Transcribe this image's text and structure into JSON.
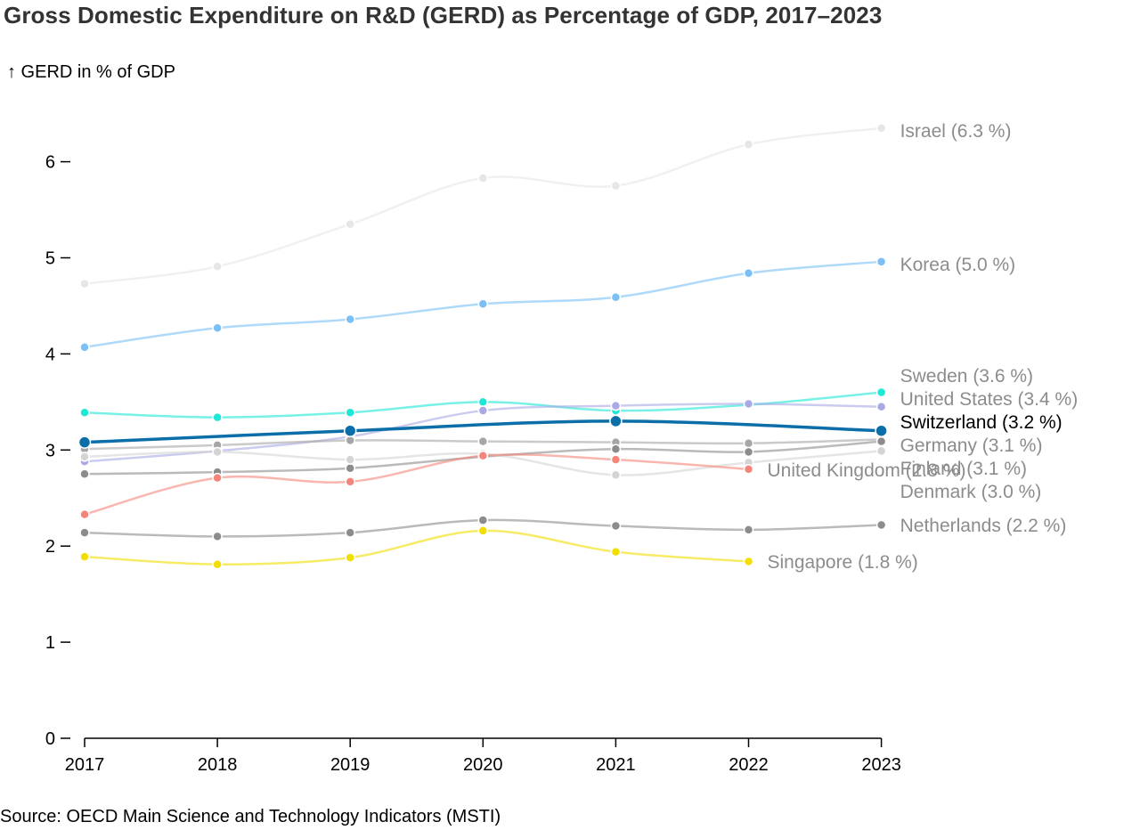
{
  "title": "Gross Domestic Expenditure on R&D (GERD) as Percentage of GDP, 2017–2023",
  "source": "Source: OECD Main Science and Technology Indicators (MSTI)",
  "chart_data": {
    "type": "line",
    "title": "Gross Domestic Expenditure on R&D (GERD) as Percentage of GDP, 2017–2023",
    "ylabel": "↑ GERD in % of GDP",
    "xlabel": "",
    "x": [
      2017,
      2018,
      2019,
      2020,
      2021,
      2022,
      2023
    ],
    "xticks": [
      "2017",
      "2018",
      "2019",
      "2020",
      "2021",
      "2022",
      "2023"
    ],
    "yticks": [
      "0",
      "1",
      "2",
      "3",
      "4",
      "5",
      "6"
    ],
    "ylim": [
      0,
      6.6
    ],
    "grid": false,
    "legend": "end-of-line labels",
    "highlight": "Switzerland",
    "series": [
      {
        "name": "Israel",
        "label": "Israel (6.3 %)",
        "color": "#e6e6e6",
        "label_color": "#8c8c8c",
        "values": [
          4.73,
          4.91,
          5.35,
          5.83,
          5.75,
          6.18,
          6.35
        ]
      },
      {
        "name": "Korea",
        "label": "Korea (5.0 %)",
        "color": "#7abff5",
        "label_color": "#8c8c8c",
        "values": [
          4.07,
          4.27,
          4.36,
          4.52,
          4.59,
          4.84,
          4.96
        ]
      },
      {
        "name": "Sweden",
        "label": "Sweden (3.6 %)",
        "color": "#1de8d6",
        "label_color": "#8c8c8c",
        "values": [
          3.39,
          3.34,
          3.39,
          3.5,
          3.41,
          3.47,
          3.6
        ]
      },
      {
        "name": "United States",
        "label": "United States (3.4 %)",
        "color": "#a9a9e6",
        "label_color": "#8c8c8c",
        "values": [
          2.88,
          2.99,
          3.14,
          3.41,
          3.46,
          3.48,
          3.45
        ]
      },
      {
        "name": "Switzerland",
        "label": "Switzerland (3.2 %)",
        "color": "#0b6ea8",
        "label_color": "#000000",
        "values": [
          3.08,
          null,
          3.2,
          null,
          3.3,
          null,
          3.2
        ]
      },
      {
        "name": "Germany",
        "label": "Germany (3.1 %)",
        "color": "#a6a6a6",
        "label_color": "#8c8c8c",
        "values": [
          3.01,
          3.05,
          3.1,
          3.09,
          3.08,
          3.07,
          3.11
        ]
      },
      {
        "name": "Finland",
        "label": "Finland (3.1 %)",
        "color": "#8c8c8c",
        "label_color": "#8c8c8c",
        "values": [
          2.75,
          2.77,
          2.81,
          2.93,
          3.01,
          2.98,
          3.09
        ]
      },
      {
        "name": "Denmark",
        "label": "Denmark (3.0 %)",
        "color": "#d4d4d4",
        "label_color": "#8c8c8c",
        "values": [
          2.93,
          2.98,
          2.9,
          2.96,
          2.74,
          2.87,
          2.99
        ]
      },
      {
        "name": "United Kingdom",
        "label": "United Kingdom (2.8 %)",
        "color": "#f5857a",
        "label_color": "#8c8c8c",
        "values": [
          2.33,
          2.71,
          2.67,
          2.94,
          2.9,
          2.8,
          null
        ]
      },
      {
        "name": "Netherlands",
        "label": "Netherlands (2.2 %)",
        "color": "#8c8c8c",
        "label_color": "#8c8c8c",
        "values": [
          2.14,
          2.1,
          2.14,
          2.27,
          2.21,
          2.17,
          2.22
        ]
      },
      {
        "name": "Singapore",
        "label": "Singapore (1.8 %)",
        "color": "#f2de00",
        "label_color": "#8c8c8c",
        "values": [
          1.89,
          1.81,
          1.88,
          2.16,
          1.94,
          1.84,
          null
        ]
      }
    ]
  }
}
